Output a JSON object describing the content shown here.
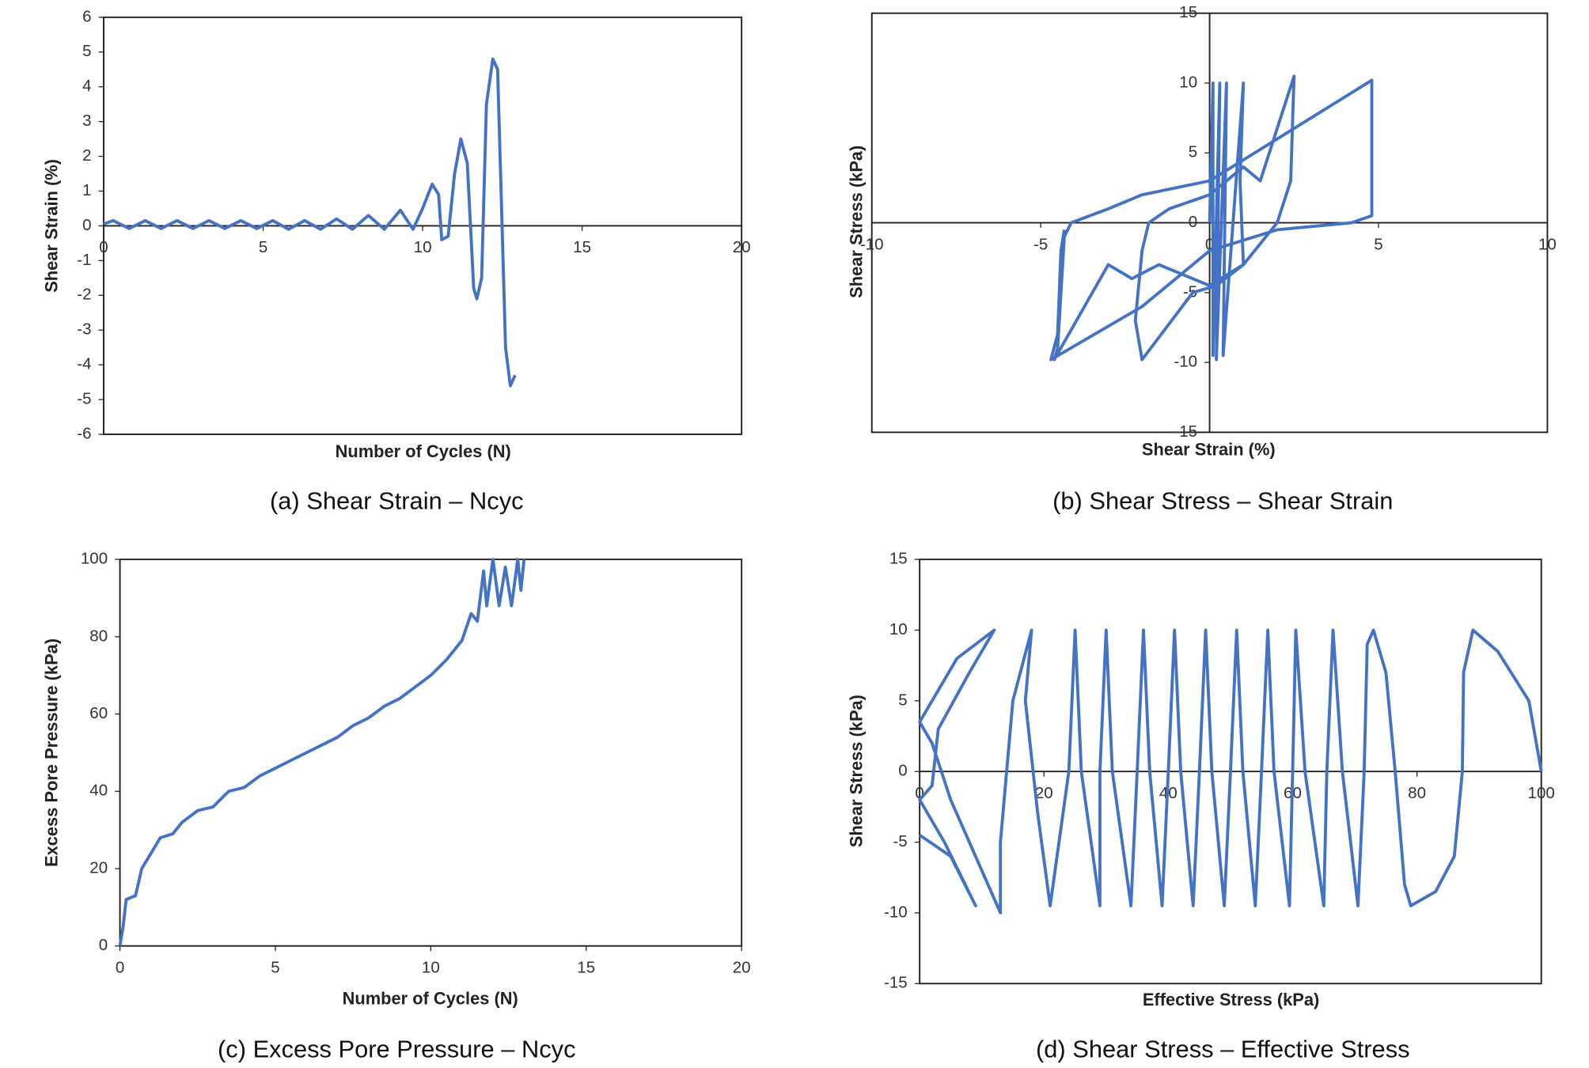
{
  "chart_data": [
    {
      "type": "line",
      "color": "#4472c4",
      "x_axis_at_zero": true,
      "x_label": "Number of Cycles (N)",
      "y_label": "Shear Strain (%)",
      "caption": "(a) Shear Strain – Ncyc",
      "xlim": [
        0,
        20
      ],
      "ylim": [
        -6,
        6
      ],
      "xticks": [
        0,
        5,
        10,
        15,
        20
      ],
      "yticks": [
        -6,
        -5,
        -4,
        -3,
        -2,
        -1,
        0,
        1,
        2,
        3,
        4,
        5,
        6
      ],
      "x": [
        0,
        0.3,
        0.8,
        1.3,
        1.8,
        2.3,
        2.8,
        3.3,
        3.8,
        4.3,
        4.8,
        5.3,
        5.8,
        6.3,
        6.8,
        7.3,
        7.8,
        8.3,
        8.8,
        9.3,
        9.7,
        10.0,
        10.3,
        10.5,
        10.6,
        10.8,
        11.0,
        11.2,
        11.4,
        11.6,
        11.7,
        11.85,
        12.0,
        12.2,
        12.35,
        12.6,
        12.75,
        12.9
      ],
      "values": [
        0.05,
        0.15,
        -0.08,
        0.15,
        -0.08,
        0.15,
        -0.08,
        0.15,
        -0.08,
        0.15,
        -0.08,
        0.15,
        -0.1,
        0.15,
        -0.1,
        0.2,
        -0.1,
        0.3,
        -0.1,
        0.45,
        -0.1,
        0.5,
        1.2,
        0.9,
        -0.4,
        -0.3,
        1.5,
        2.5,
        1.8,
        -1.8,
        -2.1,
        -1.5,
        3.5,
        4.8,
        4.5,
        -3.5,
        -4.6,
        -4.3
      ]
    },
    {
      "type": "line",
      "color": "#4472c4",
      "x_axis_at_zero": true,
      "y_axis_at_zero": true,
      "x_label": "Shear Strain (%)",
      "y_label": "Shear Stress (kPa)",
      "caption": "(b) Shear Stress – Shear Strain",
      "xlim": [
        -10,
        10
      ],
      "ylim": [
        -15,
        15
      ],
      "xticks": [
        -10,
        -5,
        0,
        5,
        10
      ],
      "yticks": [
        -15,
        -10,
        -5,
        0,
        5,
        10,
        15
      ],
      "x": [
        0,
        0.1,
        0.1,
        0.3,
        0.2,
        0.5,
        0.4,
        1.0,
        0.9,
        1.0,
        0.2,
        -0.5,
        -2.0,
        -2.2,
        -2.0,
        -1.8,
        -1.2,
        0,
        1.0,
        1.5,
        2.5,
        2.4,
        2.0,
        1.0,
        0,
        -1.5,
        -2.3,
        -3.0,
        -4.6,
        -4.5,
        -4.3,
        -4.1,
        -3.0,
        -2.0,
        0,
        2.0,
        4.8,
        4.8,
        4.2,
        2.0,
        0,
        -2.0,
        -4.7,
        -4.5,
        -4.4,
        -4.3
      ],
      "values": [
        0,
        10,
        -9.5,
        10,
        -9.8,
        10,
        -9.5,
        10,
        3,
        -3,
        -4.5,
        -5,
        -9.8,
        -7,
        -2,
        0,
        1,
        2,
        4,
        3,
        10.5,
        3,
        0,
        -3,
        -4.5,
        -3,
        -4,
        -3,
        -9.8,
        -9,
        -1,
        0,
        1,
        2,
        3,
        6,
        10.2,
        0.5,
        0,
        -0.5,
        -2,
        -6,
        -9.8,
        -8,
        -2,
        -0.5
      ]
    },
    {
      "type": "line",
      "color": "#4472c4",
      "x_label": "Number of Cycles (N)",
      "y_label": "Excess Pore Pressure (kPa)",
      "caption": "(c) Excess Pore Pressure – Ncyc",
      "xlim": [
        0,
        20
      ],
      "ylim": [
        0,
        100
      ],
      "xticks": [
        0,
        5,
        10,
        15,
        20
      ],
      "yticks": [
        0,
        20,
        40,
        60,
        80,
        100
      ],
      "x": [
        0,
        0.1,
        0.2,
        0.5,
        0.7,
        1,
        1.3,
        1.7,
        2,
        2.5,
        3,
        3.5,
        4,
        4.5,
        5,
        5.5,
        6,
        6.5,
        7,
        7.5,
        8,
        8.5,
        9,
        9.5,
        10,
        10.5,
        11,
        11.3,
        11.5,
        11.7,
        11.8,
        12,
        12.2,
        12.4,
        12.6,
        12.8,
        12.9,
        13
      ],
      "values": [
        0,
        5,
        12,
        13,
        20,
        24,
        28,
        29,
        32,
        35,
        36,
        40,
        41,
        44,
        46,
        48,
        50,
        52,
        54,
        57,
        59,
        62,
        64,
        67,
        70,
        74,
        79,
        86,
        84,
        97,
        88,
        100,
        88,
        98,
        88,
        100,
        92,
        100
      ]
    },
    {
      "type": "line",
      "color": "#4472c4",
      "x_axis_at_zero": true,
      "x_label": "Effective Stress (kPa)",
      "y_label": "Shear Stress (kPa)",
      "caption": "(d) Shear Stress – Effective Stress",
      "xlim": [
        0,
        100
      ],
      "ylim": [
        -15,
        15
      ],
      "xticks": [
        0,
        20,
        40,
        60,
        80,
        100
      ],
      "yticks": [
        -15,
        -10,
        -5,
        0,
        5,
        10,
        15
      ],
      "x": [
        100,
        98,
        93,
        89,
        87.5,
        87.3,
        86,
        83,
        79,
        78,
        76.5,
        75,
        73,
        72,
        71.5,
        70.5,
        68,
        66.5,
        65.5,
        65,
        62,
        60.5,
        60,
        59.5,
        57,
        56,
        55,
        54,
        52,
        51,
        50,
        49,
        47,
        46,
        45,
        44,
        42,
        41,
        40,
        39,
        37,
        36,
        35,
        34,
        31,
        30,
        29,
        29,
        26,
        25,
        24,
        21,
        19,
        17,
        18,
        15,
        14,
        13,
        13,
        10,
        5,
        2,
        0,
        2,
        6,
        12,
        8,
        3,
        2,
        0,
        4,
        9,
        5,
        0
      ],
      "values": [
        0,
        5,
        8.5,
        10,
        7,
        0,
        -6,
        -8.5,
        -9.5,
        -8,
        0,
        7,
        10,
        9,
        0,
        -9.5,
        0,
        10,
        0,
        -9.5,
        0,
        10,
        0,
        -9.5,
        0,
        10,
        0,
        -9.5,
        0,
        10,
        0,
        -9.5,
        0,
        10,
        0,
        -9.5,
        0,
        10,
        0,
        -9.5,
        0,
        10,
        0,
        -9.5,
        0,
        10,
        0,
        -9.5,
        0,
        10,
        0,
        -9.5,
        -3,
        5,
        10,
        5,
        0,
        -5,
        -10,
        -7,
        -2,
        2,
        3.5,
        5,
        8,
        10,
        7,
        3,
        -1,
        -2,
        -5,
        -9.5,
        -6,
        -4.5
      ]
    }
  ]
}
